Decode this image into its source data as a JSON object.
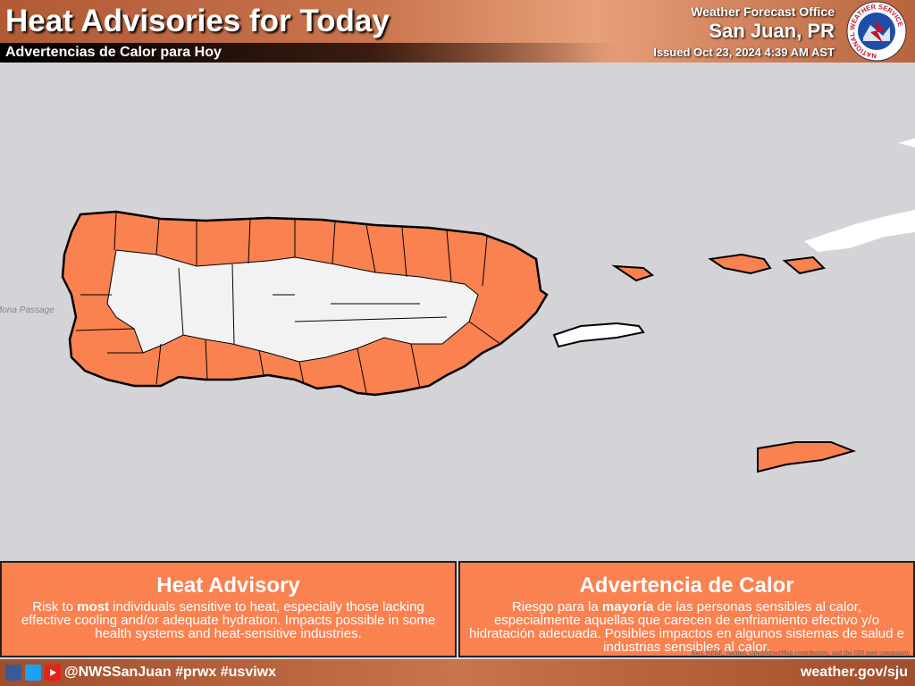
{
  "header": {
    "title": "Heat Advisories for Today",
    "subtitle": "Advertencias de Calor para Hoy",
    "office": "Weather Forecast Office",
    "location": "San Juan, PR",
    "issued": "Issued Oct 23, 2024 4:39 AM AST",
    "logo_text": "NATIONAL WEATHER SERVICE"
  },
  "map": {
    "labels": [
      "Mona Passage"
    ],
    "attribution": "Esri, HERE, Garmin, OpenStreetMap contributors, and the GIS user community"
  },
  "legend": [
    {
      "title": "Heat Advisory",
      "text": [
        "Risk to ",
        "most",
        " individuals sensitive to heat, especially those lacking effective cooling and/or adequate hydration. Impacts possible in some health systems and heat-sensitive industries."
      ]
    },
    {
      "title": "Advertencia de Calor",
      "text": [
        "Riesgo para la ",
        "mayoría",
        " de las personas sensibles al calor, especialmente aquellas que carecen de enfriamiento efectivo y/o hidratación adecuada. Posibles impactos en algunos sistemas de salud e industrias sensibles al calor."
      ]
    }
  ],
  "footer": {
    "social": "@NWSSanJuan #prwx #usviwx",
    "website": "weather.gov/sju"
  }
}
